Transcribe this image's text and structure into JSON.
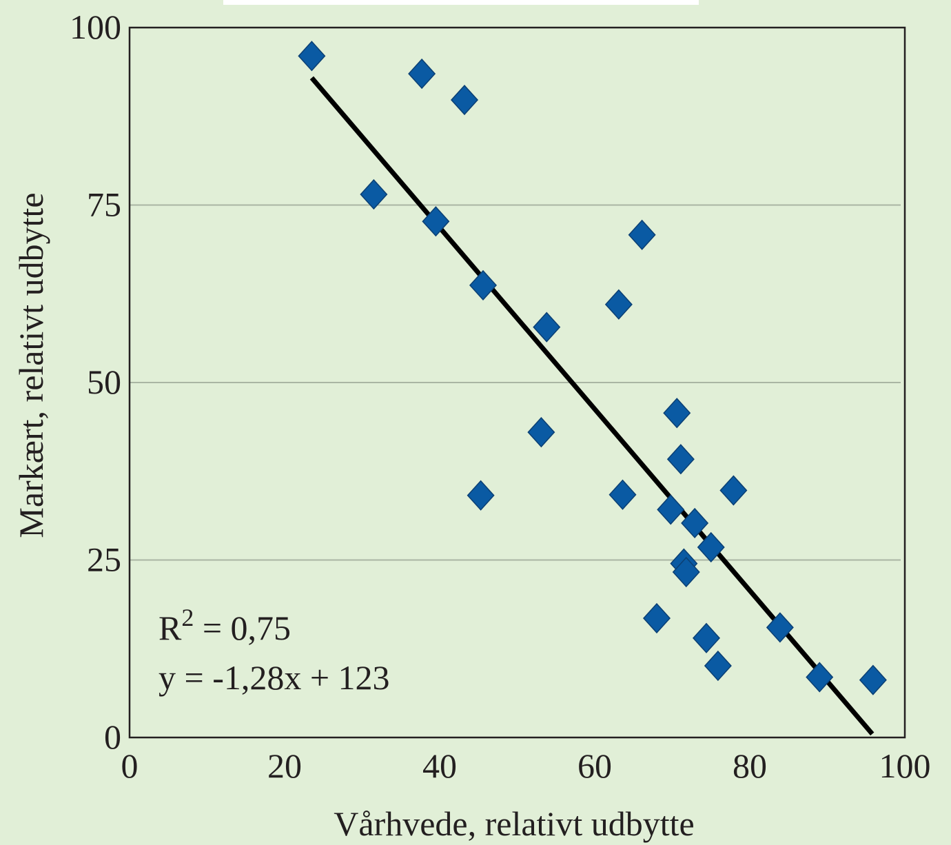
{
  "chart_data": {
    "type": "scatter",
    "title": "",
    "xlabel": "Vårhvede, relativt udbytte",
    "ylabel": "Markært, relativt udbytte",
    "xlim": [
      0,
      100
    ],
    "ylim": [
      0,
      100
    ],
    "x_ticks": [
      0,
      20,
      40,
      60,
      80,
      100
    ],
    "y_ticks": [
      0,
      25,
      50,
      75,
      100
    ],
    "x_tick_labels": [
      "0",
      "20",
      "40",
      "60",
      "80",
      "100"
    ],
    "y_tick_labels": [
      "0",
      "25",
      "50",
      "75",
      "100"
    ],
    "grid": "horizontal",
    "marker": "diamond",
    "marker_color": "#0a5aa3",
    "points": [
      {
        "x": 23.5,
        "y": 96.0
      },
      {
        "x": 37.7,
        "y": 93.5
      },
      {
        "x": 43.2,
        "y": 89.8
      },
      {
        "x": 31.5,
        "y": 76.5
      },
      {
        "x": 39.5,
        "y": 72.7
      },
      {
        "x": 66.1,
        "y": 70.8
      },
      {
        "x": 45.6,
        "y": 63.7
      },
      {
        "x": 63.1,
        "y": 61.0
      },
      {
        "x": 53.8,
        "y": 57.8
      },
      {
        "x": 70.6,
        "y": 45.7
      },
      {
        "x": 53.1,
        "y": 43.0
      },
      {
        "x": 71.1,
        "y": 39.2
      },
      {
        "x": 45.3,
        "y": 34.1
      },
      {
        "x": 63.6,
        "y": 34.2
      },
      {
        "x": 77.9,
        "y": 34.8
      },
      {
        "x": 69.8,
        "y": 32.1
      },
      {
        "x": 72.9,
        "y": 30.2
      },
      {
        "x": 75.0,
        "y": 26.8
      },
      {
        "x": 71.5,
        "y": 24.5
      },
      {
        "x": 71.8,
        "y": 23.3
      },
      {
        "x": 68.0,
        "y": 16.8
      },
      {
        "x": 74.4,
        "y": 14.0
      },
      {
        "x": 83.9,
        "y": 15.5
      },
      {
        "x": 75.9,
        "y": 10.1
      },
      {
        "x": 89.0,
        "y": 8.5
      },
      {
        "x": 95.9,
        "y": 8.1
      }
    ],
    "trendline": {
      "slope": -1.28,
      "intercept": 123,
      "x_range": [
        23.5,
        95.8
      ],
      "color": "#000000"
    },
    "annotations": {
      "r2_base": "R",
      "r2_sup": "2",
      "r2_rest": " = 0,75",
      "equation": "y = -1,28x + 123"
    },
    "colors": {
      "background": "#e1efd7",
      "gridline": "#a9b5a3",
      "axis": "#231f20",
      "marker": "#0a5aa3"
    }
  }
}
